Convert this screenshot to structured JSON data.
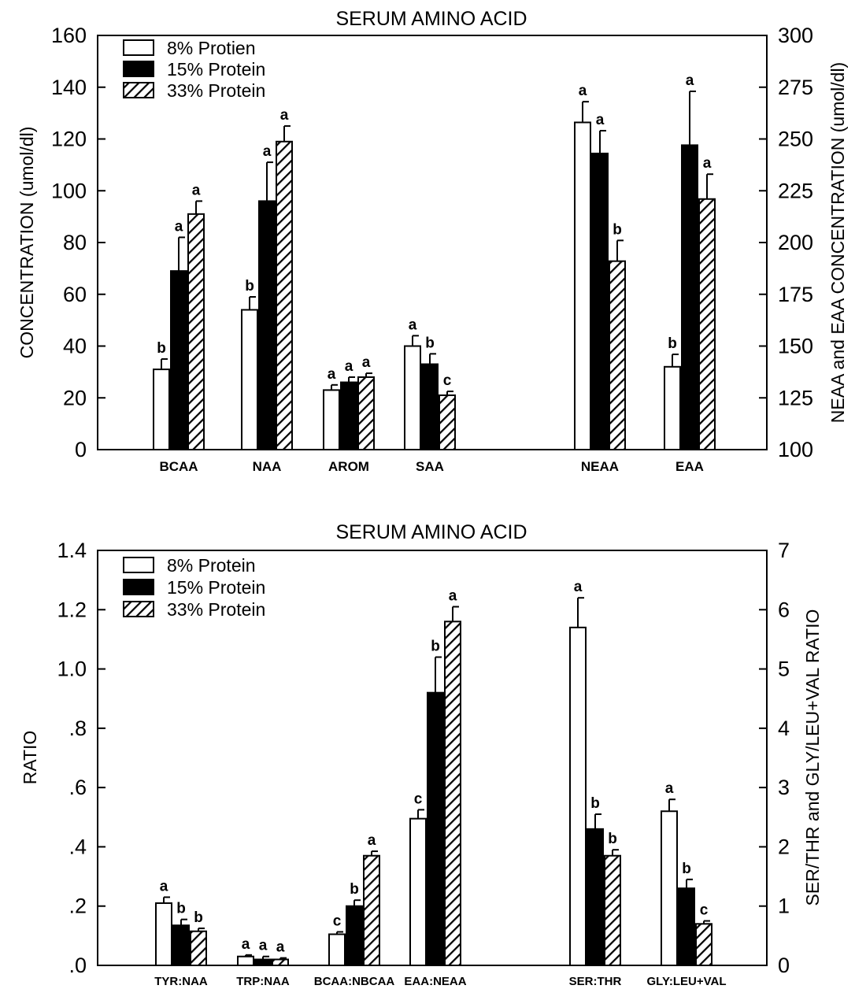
{
  "chart_data": [
    {
      "type": "bar",
      "title": "SERUM AMINO ACID",
      "ylabel": "CONCENTRATION (umol/dl)",
      "ylabel_right": "NEAA and EAA CONCENTRATION (umol/dl)",
      "ylim": [
        0,
        160
      ],
      "ylim_right": [
        100,
        300
      ],
      "yticks": [
        "0",
        "20",
        "40",
        "60",
        "80",
        "100",
        "120",
        "140",
        "160"
      ],
      "yticks_right": [
        "100",
        "125",
        "150",
        "175",
        "200",
        "225",
        "250",
        "275",
        "300"
      ],
      "categories": [
        "BCAA",
        "NAA",
        "AROM",
        "SAA",
        "NEAA",
        "EAA"
      ],
      "right_axis_categories": [
        "NEAA",
        "EAA"
      ],
      "legend_position": "top-left",
      "series": [
        {
          "name": "8% Protien",
          "fill": "white",
          "values": [
            31,
            54,
            23,
            40,
            258,
            140
          ],
          "errors": [
            4,
            5,
            2,
            4,
            10,
            6
          ],
          "labels": [
            "b",
            "b",
            "a",
            "a",
            "a",
            "b"
          ]
        },
        {
          "name": "15% Protein",
          "fill": "black",
          "values": [
            69,
            96,
            26,
            33,
            243,
            247
          ],
          "errors": [
            13,
            15,
            2,
            4,
            11,
            26
          ],
          "labels": [
            "a",
            "a",
            "a",
            "b",
            "a",
            "a"
          ]
        },
        {
          "name": "33% Protein",
          "fill": "hatched",
          "values": [
            91,
            119,
            28,
            21,
            191,
            221
          ],
          "errors": [
            5,
            6,
            1.5,
            1.5,
            10,
            12
          ],
          "labels": [
            "a",
            "a",
            "a",
            "c",
            "b",
            "a"
          ]
        }
      ]
    },
    {
      "type": "bar",
      "title": "SERUM AMINO ACID",
      "ylabel": "RATIO",
      "ylabel_right": "SER/THR and GLY/LEU+VAL RATIO",
      "ylim": [
        0,
        1.4
      ],
      "ylim_right": [
        0,
        7
      ],
      "yticks": [
        ".0",
        ".2",
        ".4",
        ".6",
        ".8",
        "1.0",
        "1.2",
        "1.4"
      ],
      "yticks_right": [
        "0",
        "1",
        "2",
        "3",
        "4",
        "5",
        "6",
        "7"
      ],
      "categories": [
        "TYR:NAA",
        "TRP:NAA",
        "BCAA:NBCAA",
        "EAA:NEAA",
        "SER:THR",
        "GLY:LEU+VAL"
      ],
      "right_axis_categories": [
        "SER:THR",
        "GLY:LEU+VAL"
      ],
      "legend_position": "top-left",
      "series": [
        {
          "name": "8% Protein",
          "fill": "white",
          "values": [
            0.21,
            0.03,
            0.105,
            0.495,
            5.7,
            2.6
          ],
          "errors": [
            0.02,
            0.005,
            0.008,
            0.03,
            0.5,
            0.2
          ],
          "labels": [
            "a",
            "a",
            "c",
            "c",
            "a",
            "a"
          ]
        },
        {
          "name": "15% Protein",
          "fill": "black",
          "values": [
            0.135,
            0.02,
            0.2,
            0.92,
            2.3,
            1.3
          ],
          "errors": [
            0.02,
            0.01,
            0.02,
            0.12,
            0.25,
            0.15
          ],
          "labels": [
            "b",
            "a",
            "b",
            "b",
            "b",
            "b"
          ]
        },
        {
          "name": "33% Protein",
          "fill": "hatched",
          "values": [
            0.115,
            0.02,
            0.37,
            1.16,
            1.85,
            0.7
          ],
          "errors": [
            0.01,
            0.005,
            0.015,
            0.05,
            0.1,
            0.05
          ],
          "labels": [
            "b",
            "a",
            "a",
            "a",
            "b",
            "c"
          ]
        }
      ]
    }
  ]
}
